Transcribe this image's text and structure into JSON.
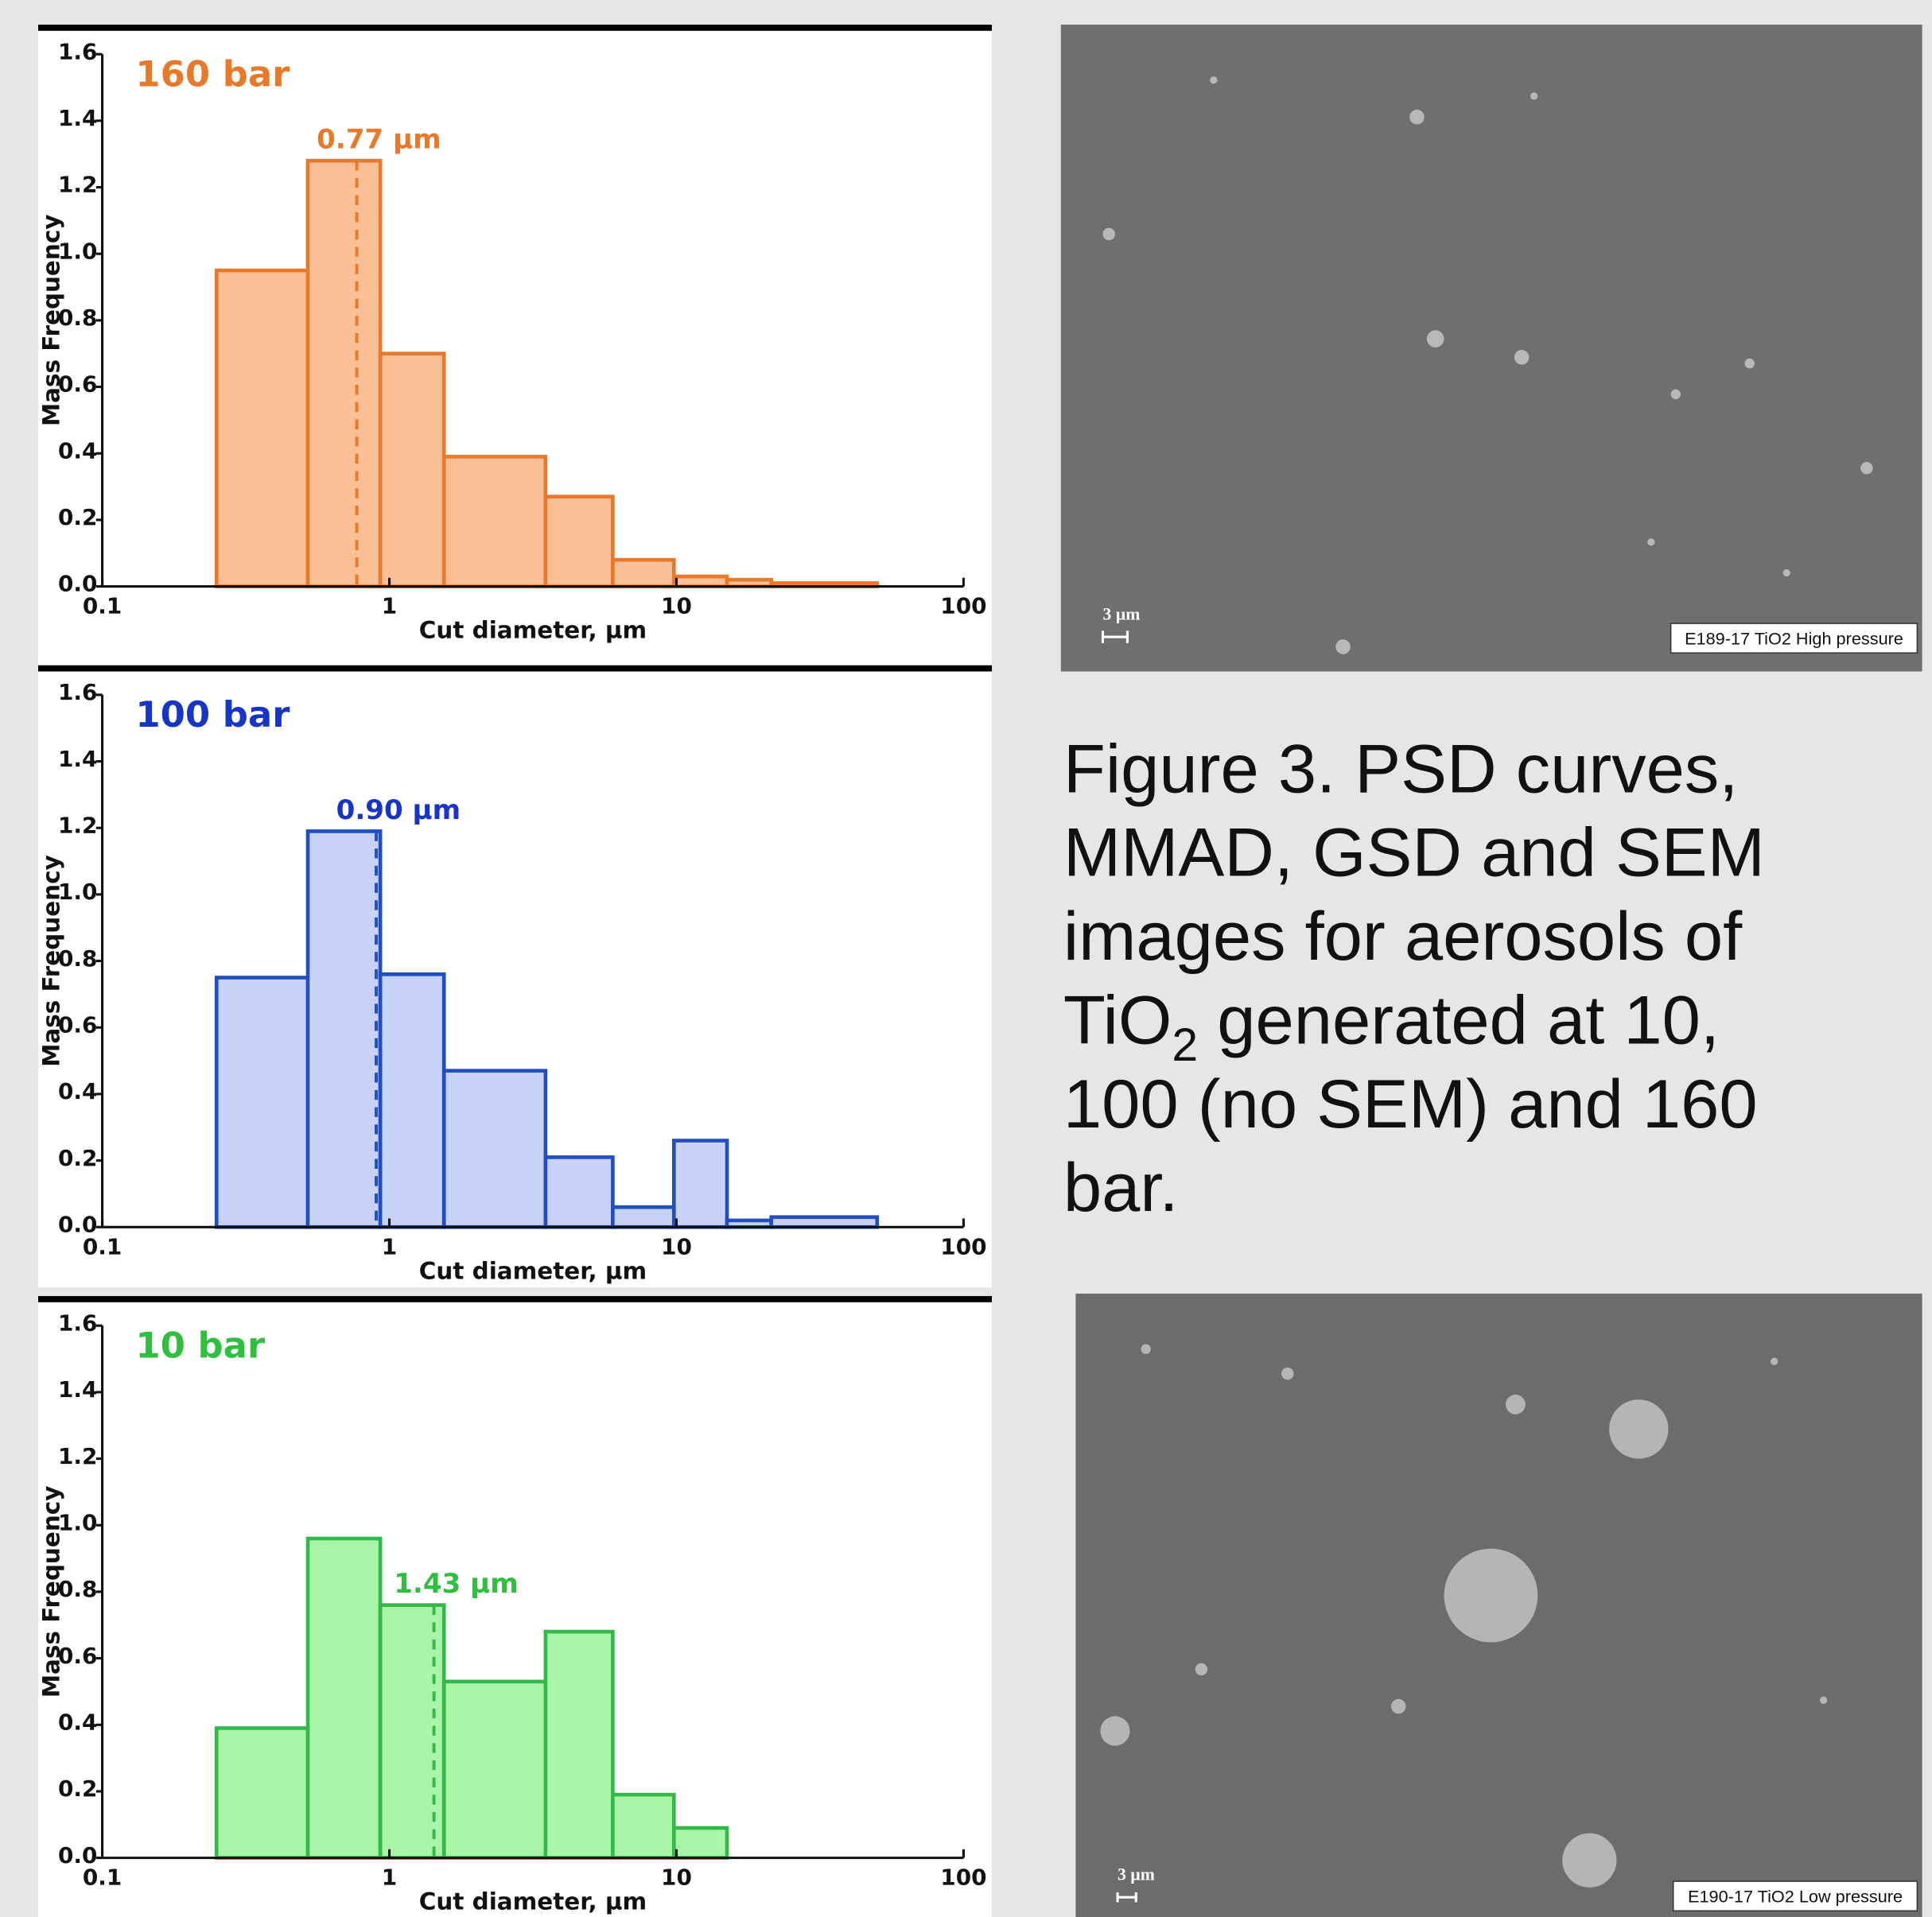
{
  "chart_data": [
    {
      "type": "histogram",
      "title": "160 bar",
      "title_color": "#e8782a",
      "color": "#e8782a",
      "fill": "#fbbf96",
      "bins": [
        0.25,
        0.52,
        0.93,
        1.55,
        3.5,
        6.0,
        9.8,
        15,
        21.4,
        50
      ],
      "values": [
        0.95,
        1.28,
        0.7,
        0.39,
        0.27,
        0.08,
        0.03,
        0.02,
        0.01
      ],
      "annotation": {
        "value": 0.77,
        "label": "0.77 µm"
      },
      "x_label": "Cut diameter, µm",
      "y_label": "Mass Frequency",
      "xscale": "log",
      "xlim": [
        0.1,
        100
      ],
      "xticks": [
        0.1,
        1,
        10,
        100
      ],
      "ylim": [
        0,
        1.6
      ],
      "yticks": [
        {
          "value": 0,
          "label": "0.0"
        },
        0.2,
        0.4,
        0.6,
        0.8,
        {
          "value": 1,
          "label": "1.0"
        },
        1.2,
        1.4,
        1.6
      ]
    },
    {
      "type": "histogram",
      "title": "100 bar",
      "title_color": "#1634c7",
      "color": "#1f4fc0",
      "fill": "#c8d2f7",
      "bins": [
        0.25,
        0.52,
        0.93,
        1.55,
        3.5,
        6.0,
        9.8,
        15,
        21.4,
        50
      ],
      "values": [
        0.75,
        1.19,
        0.76,
        0.47,
        0.21,
        0.06,
        0.26,
        0.02,
        0.03
      ],
      "annotation": {
        "value": 0.9,
        "label": "0.90 µm"
      },
      "x_label": "Cut diameter, µm",
      "y_label": "Mass Frequency",
      "xscale": "log",
      "xlim": [
        0.1,
        100
      ],
      "xticks": [
        0.1,
        1,
        10,
        100
      ],
      "ylim": [
        0,
        1.6
      ],
      "yticks": [
        {
          "value": 0,
          "label": "0.0"
        },
        0.2,
        0.4,
        0.6,
        0.8,
        {
          "value": 1,
          "label": "1.0"
        },
        1.2,
        1.4,
        1.6
      ]
    },
    {
      "type": "histogram",
      "title": "10 bar",
      "title_color": "#2fbf3f",
      "color": "#33b94a",
      "fill": "#a8f5a8",
      "bins": [
        0.25,
        0.52,
        0.93,
        1.55,
        3.5,
        6.0,
        9.8,
        15,
        21.4,
        50
      ],
      "values": [
        0.39,
        0.96,
        0.76,
        0.53,
        0.68,
        0.19,
        0.09,
        0,
        0
      ],
      "annotation": {
        "value": 1.43,
        "label": "1.43 µm"
      },
      "x_label": "Cut diameter, µm",
      "y_label": "Mass Frequency",
      "xscale": "log",
      "xlim": [
        0.1,
        100
      ],
      "xticks": [
        0.1,
        1,
        10,
        100
      ],
      "ylim": [
        0,
        1.6
      ],
      "yticks": [
        {
          "value": 0,
          "label": "0.0"
        },
        0.2,
        0.4,
        0.6,
        0.8,
        {
          "value": 1,
          "label": "1.0"
        },
        1.2,
        1.4,
        1.6
      ]
    }
  ],
  "caption": [
    "Figure 3. PSD curves,",
    "MMAD, GSD and SEM",
    "images for aerosols of",
    "TiO",
    "2",
    " generated at 10,",
    "100 (no SEM) and 160",
    "bar."
  ],
  "sem_images": [
    {
      "scale_bar": "3 µm",
      "label": "E189-17 TiO2 High pressure"
    },
    {
      "scale_bar": "3 µm",
      "label": "E190-17 TiO2 Low pressure"
    }
  ]
}
